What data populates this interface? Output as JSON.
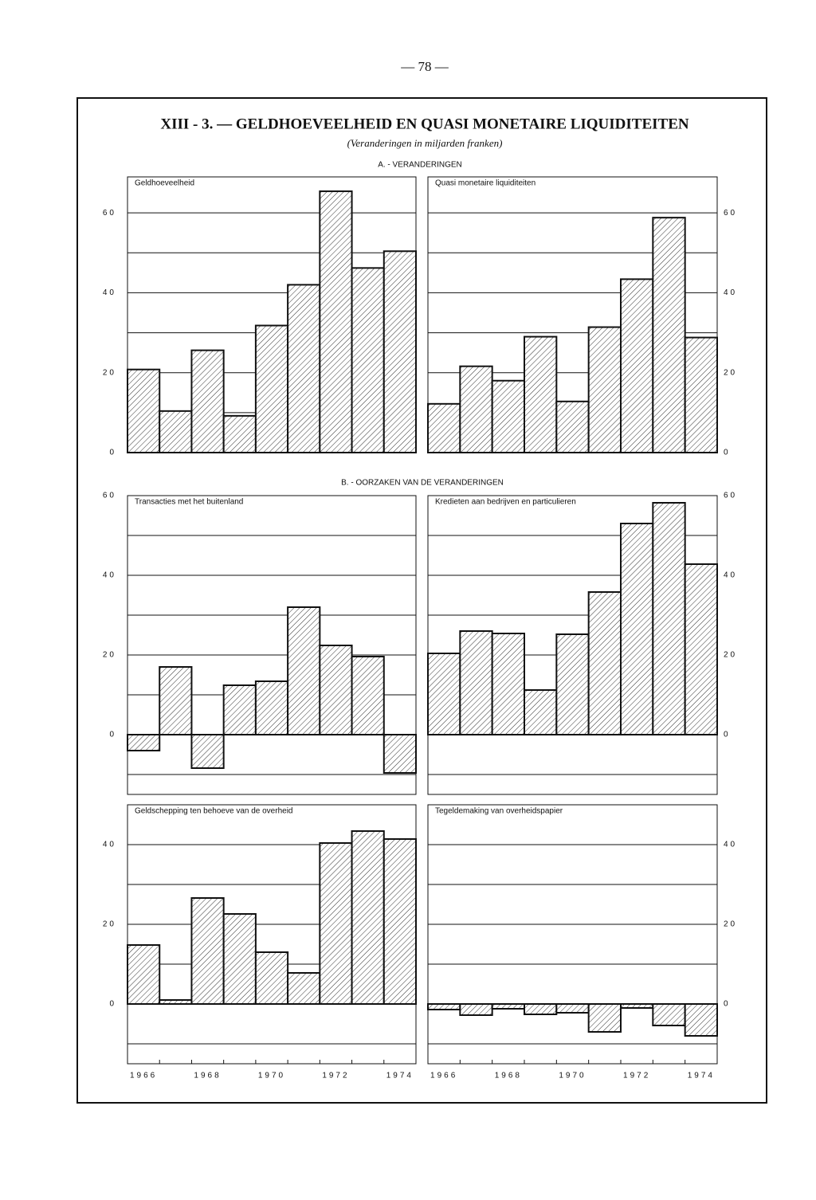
{
  "page_number": "— 78 —",
  "title": "XIII - 3. — GELDHOEVEELHEID EN QUASI MONETAIRE LIQUIDITEITEN",
  "subtitle": "(Veranderingen in miljarden franken)",
  "sections": [
    "A. - VERANDERINGEN",
    "B. - OORZAKEN VAN DE VERANDERINGEN"
  ],
  "chart_data": [
    {
      "type": "bar",
      "title": "Geldhoeveelheid",
      "values": [
        20.8,
        10.4,
        25.6,
        9.2,
        31.8,
        42,
        65.4,
        46.2,
        50.4
      ],
      "ylim": [
        0,
        69
      ],
      "yticks": [
        0,
        20,
        40,
        60
      ],
      "gridlines": [
        10,
        30,
        50
      ],
      "ytick_side": "left",
      "color": "#111111"
    },
    {
      "type": "bar",
      "title": "Quasi monetaire liquiditeiten",
      "values": [
        12.2,
        21.6,
        18,
        29,
        12.8,
        31.4,
        43.4,
        58.8,
        28.8
      ],
      "ylim": [
        0,
        69
      ],
      "yticks": [
        0,
        20,
        40,
        60
      ],
      "gridlines": [
        10,
        30,
        50
      ],
      "ytick_side": "right",
      "color": "#111111"
    },
    {
      "type": "bar",
      "title": "Transacties met het buitenland",
      "values": [
        -4,
        17,
        -8.4,
        12.4,
        13.4,
        32,
        22.4,
        19.6,
        -9.6
      ],
      "ylim": [
        -15,
        60
      ],
      "yticks": [
        0,
        20,
        40,
        60
      ],
      "gridlines": [
        -10,
        10,
        30,
        50
      ],
      "ytick_side": "left",
      "color": "#111111"
    },
    {
      "type": "bar",
      "title": "Kredieten aan bedrijven en particulieren",
      "values": [
        20.4,
        26,
        25.4,
        11.2,
        25.2,
        35.8,
        53,
        58.2,
        42.8
      ],
      "ylim": [
        -15,
        60
      ],
      "yticks": [
        0,
        20,
        40,
        60
      ],
      "gridlines": [
        -10,
        10,
        30,
        50
      ],
      "ytick_side": "right",
      "color": "#111111"
    },
    {
      "type": "bar",
      "title": "Geldschepping ten behoeve van de overheid",
      "categories": [
        "1966",
        null,
        "1968",
        null,
        "1970",
        null,
        "1972",
        null,
        "1974"
      ],
      "values": [
        14.8,
        1,
        26.6,
        22.6,
        13,
        7.8,
        40.4,
        43.4,
        41.4
      ],
      "ylim": [
        -15,
        50
      ],
      "yticks": [
        0,
        20,
        40
      ],
      "gridlines": [
        -10,
        10,
        30
      ],
      "ytick_side": "left",
      "color": "#111111"
    },
    {
      "type": "bar",
      "title": "Tegeldemaking van overheidspapier",
      "categories": [
        "1966",
        null,
        "1968",
        null,
        "1970",
        null,
        "1972",
        null,
        "1974"
      ],
      "values": [
        -1.4,
        -2.8,
        -1.2,
        -2.6,
        -2.2,
        -7,
        -1,
        -5.4,
        -8
      ],
      "ylim": [
        -15,
        50
      ],
      "yticks": [
        0,
        20,
        40
      ],
      "gridlines": [
        -10,
        10,
        30
      ],
      "ytick_side": "right",
      "color": "#111111"
    }
  ]
}
